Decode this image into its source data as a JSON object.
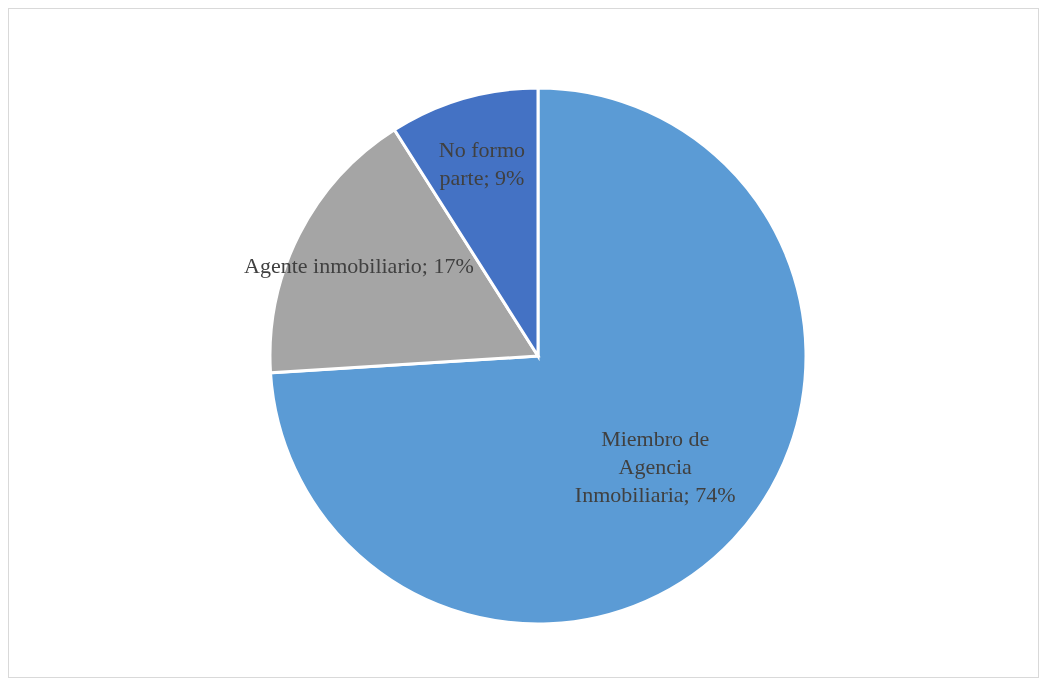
{
  "chart_data": {
    "type": "pie",
    "categories": [
      "Miembro de Agencia Inmobiliaria",
      "Agente inmobiliario",
      "No formo parte"
    ],
    "values": [
      74,
      17,
      9
    ],
    "colors": [
      "#5b9bd5",
      "#a5a5a5",
      "#4472c4"
    ],
    "value_labels": [
      "74%",
      "17%",
      "9%"
    ],
    "legend": false
  }
}
